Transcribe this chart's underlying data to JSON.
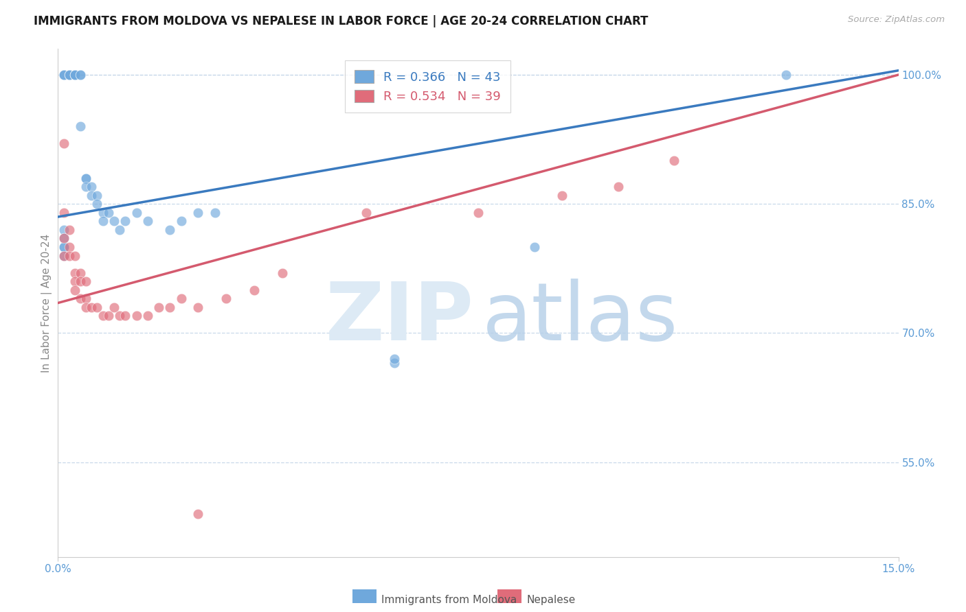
{
  "title": "IMMIGRANTS FROM MOLDOVA VS NEPALESE IN LABOR FORCE | AGE 20-24 CORRELATION CHART",
  "source": "Source: ZipAtlas.com",
  "ylabel": "In Labor Force | Age 20-24",
  "xmin": 0.0,
  "xmax": 0.15,
  "ymin": 0.44,
  "ymax": 1.03,
  "yticks": [
    0.55,
    0.7,
    0.85,
    1.0
  ],
  "ytick_labels": [
    "55.0%",
    "70.0%",
    "85.0%",
    "100.0%"
  ],
  "blue_R": 0.366,
  "blue_N": 43,
  "pink_R": 0.534,
  "pink_N": 39,
  "blue_color": "#6fa8dc",
  "pink_color": "#e06c7a",
  "trend_blue": "#3a7abf",
  "trend_pink": "#d45a6e",
  "blue_line_y0": 0.835,
  "blue_line_y1": 1.005,
  "pink_line_y0": 0.735,
  "pink_line_y1": 1.0,
  "blue_scatter_x": [
    0.001,
    0.001,
    0.001,
    0.002,
    0.002,
    0.002,
    0.002,
    0.003,
    0.003,
    0.003,
    0.003,
    0.003,
    0.004,
    0.004,
    0.004,
    0.005,
    0.005,
    0.005,
    0.006,
    0.006,
    0.007,
    0.007,
    0.008,
    0.008,
    0.009,
    0.01,
    0.011,
    0.012,
    0.014,
    0.016,
    0.02,
    0.022,
    0.025,
    0.028,
    0.06,
    0.085,
    0.13,
    0.001,
    0.001,
    0.001,
    0.001,
    0.001,
    0.06
  ],
  "blue_scatter_y": [
    1.0,
    1.0,
    1.0,
    1.0,
    1.0,
    1.0,
    1.0,
    1.0,
    1.0,
    1.0,
    1.0,
    1.0,
    1.0,
    1.0,
    0.94,
    0.88,
    0.88,
    0.87,
    0.87,
    0.86,
    0.86,
    0.85,
    0.84,
    0.83,
    0.84,
    0.83,
    0.82,
    0.83,
    0.84,
    0.83,
    0.82,
    0.83,
    0.84,
    0.84,
    0.665,
    0.8,
    1.0,
    0.82,
    0.81,
    0.8,
    0.8,
    0.79,
    0.67
  ],
  "pink_scatter_x": [
    0.001,
    0.001,
    0.001,
    0.001,
    0.002,
    0.002,
    0.002,
    0.003,
    0.003,
    0.003,
    0.003,
    0.004,
    0.004,
    0.004,
    0.005,
    0.005,
    0.005,
    0.006,
    0.007,
    0.008,
    0.009,
    0.01,
    0.011,
    0.012,
    0.014,
    0.016,
    0.018,
    0.02,
    0.022,
    0.025,
    0.03,
    0.035,
    0.04,
    0.055,
    0.075,
    0.09,
    0.1,
    0.11,
    0.025
  ],
  "pink_scatter_y": [
    0.92,
    0.84,
    0.81,
    0.79,
    0.82,
    0.8,
    0.79,
    0.79,
    0.77,
    0.76,
    0.75,
    0.77,
    0.76,
    0.74,
    0.76,
    0.74,
    0.73,
    0.73,
    0.73,
    0.72,
    0.72,
    0.73,
    0.72,
    0.72,
    0.72,
    0.72,
    0.73,
    0.73,
    0.74,
    0.73,
    0.74,
    0.75,
    0.77,
    0.84,
    0.84,
    0.86,
    0.87,
    0.9,
    0.49
  ],
  "legend_label_blue": "Immigrants from Moldova",
  "legend_label_pink": "Nepalese",
  "background_color": "#ffffff"
}
